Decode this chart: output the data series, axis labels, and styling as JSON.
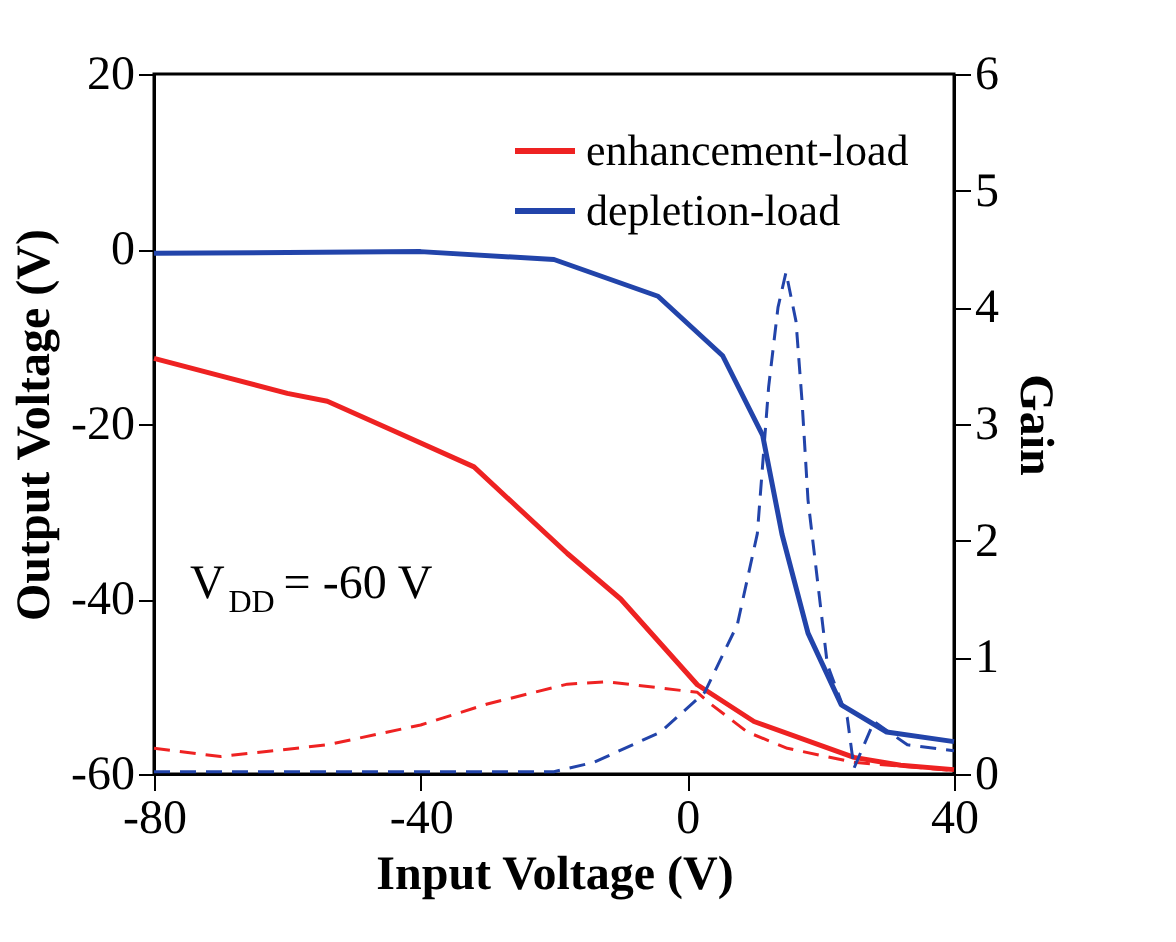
{
  "chart_data": {
    "type": "line",
    "xlabel": "Input Voltage (V)",
    "ylabel": "Output Voltage (V)",
    "y2label": "Gain",
    "xlim": [
      -80,
      40
    ],
    "xticks": [
      -80,
      -40,
      0,
      40
    ],
    "ylim": [
      -60,
      20
    ],
    "yticks": [
      -60,
      -40,
      -20,
      0,
      20
    ],
    "y2lim": [
      0,
      6
    ],
    "y2ticks": [
      0,
      1,
      2,
      3,
      4,
      5,
      6
    ],
    "grid": false,
    "legend": "top right",
    "marker": "none",
    "annotations": [
      "V$_{DD}$ = -60 V"
    ],
    "series": [
      {
        "name": "enhancement-load",
        "color": "#ee2222",
        "line_style": "solid",
        "x": [
          -80,
          -70,
          -60,
          -54,
          -44,
          -32,
          -18,
          -10,
          1.5,
          10,
          25,
          32,
          40
        ],
        "values": [
          -12.5,
          -14.5,
          -16.5,
          -17.4,
          -20.8,
          -24.9,
          -34.8,
          -40,
          -49.8,
          -54,
          -58.1,
          -59,
          -59.5
        ]
      },
      {
        "name": "depletion-load",
        "color": "#2244aa",
        "line_style": "solid",
        "x": [
          -80,
          -60,
          -40,
          -20,
          -4.4,
          5.3,
          11.3,
          14.2,
          18.1,
          23.1,
          29.9,
          40
        ],
        "values": [
          -0.5,
          -0.4,
          -0.3,
          -1.2,
          -5.4,
          -12.2,
          -21.3,
          -32.6,
          -43.9,
          -52.1,
          -55.2,
          -56.3
        ]
      },
      {
        "color": "#ee2222",
        "line_style": "dashed",
        "axis": "y2",
        "x": [
          -80,
          -70,
          -54,
          -40,
          -30,
          -18,
          -12,
          1.5,
          3.5,
          9,
          15,
          25,
          40
        ],
        "values": [
          0.22,
          0.15,
          0.25,
          0.42,
          0.6,
          0.77,
          0.79,
          0.7,
          0.6,
          0.36,
          0.22,
          0.1,
          0.03
        ]
      },
      {
        "color": "#2244aa",
        "line_style": "dashed",
        "axis": "y2",
        "x": [
          -80,
          -40,
          -20,
          -14,
          -4,
          2.6,
          7.5,
          10.5,
          12.2,
          13.6,
          14.8,
          16.3,
          17.2,
          18.1,
          21,
          24,
          25,
          28,
          33,
          40
        ],
        "values": [
          0.02,
          0.02,
          0.02,
          0.1,
          0.36,
          0.7,
          1.28,
          2.06,
          3.32,
          4.0,
          4.3,
          3.88,
          3.2,
          2.35,
          0.94,
          0.48,
          0.05,
          0.45,
          0.25,
          0.2
        ]
      }
    ]
  }
}
